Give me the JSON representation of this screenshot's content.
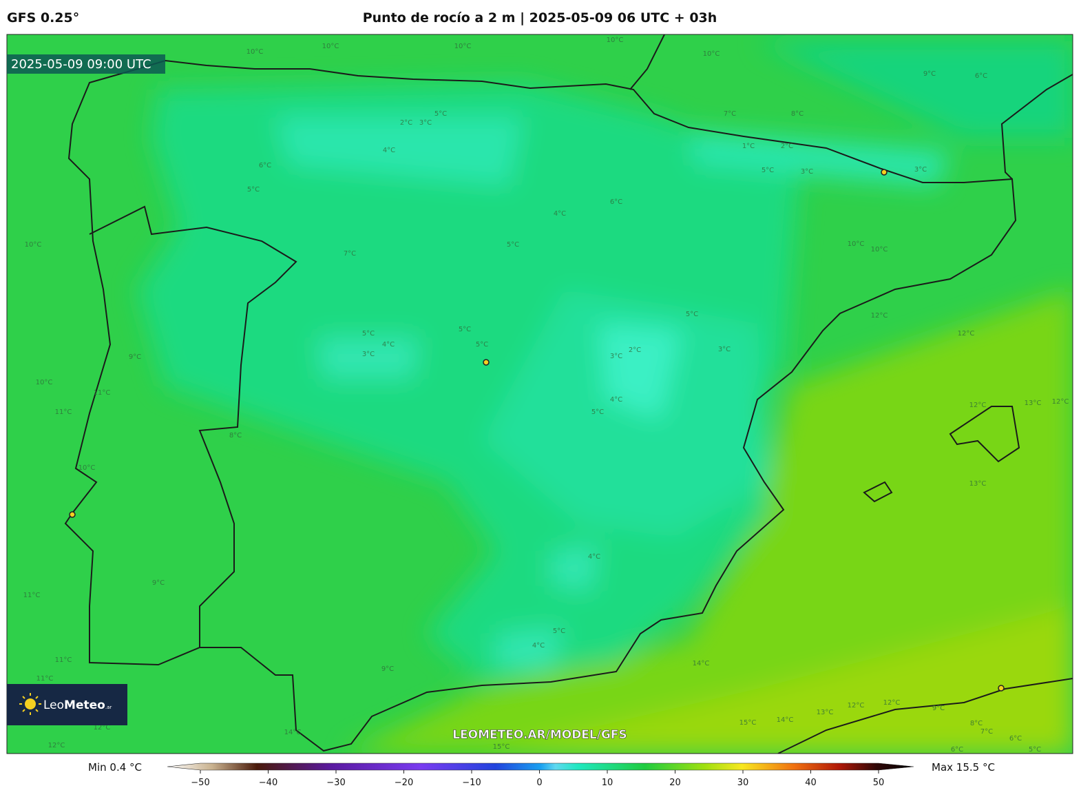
{
  "header": {
    "model": "GFS 0.25°",
    "title": "Punto de rocío a 2 m | 2025-05-09 06 UTC + 03h"
  },
  "map": {
    "valid_time": "2025-05-09 09:00 UTC",
    "watermark": "LEOMETEO.AR/MODEL/GFS",
    "logo": {
      "part1": "Leo",
      "part2": "Meteo",
      "part3": ".ar"
    },
    "contour_labels": [
      "10°C",
      "10°C",
      "10°C",
      "10°C",
      "10°C",
      "2°C",
      "3°C",
      "4°C",
      "5°C",
      "6°C",
      "5°C",
      "7°C",
      "8°C",
      "1°C",
      "2°C",
      "3°C",
      "5°C",
      "3°C",
      "6°C",
      "4°C",
      "5°C",
      "7°C",
      "10°C",
      "10°C",
      "10°C",
      "5°C",
      "4°C",
      "3°C",
      "5°C",
      "5°C",
      "5°C",
      "2°C",
      "3°C",
      "3°C",
      "4°C",
      "5°C",
      "12°C",
      "12°C",
      "12°C",
      "13°C",
      "13°C",
      "9°C",
      "10°C",
      "11°C",
      "11°C",
      "8°C",
      "10°C",
      "9°C",
      "4°C",
      "11°C",
      "5°C",
      "4°C",
      "9°C",
      "11°C",
      "11°C",
      "12°C",
      "12°C",
      "14°C",
      "15°C",
      "14°C",
      "15°C",
      "14°C",
      "13°C",
      "12°C",
      "12°C",
      "9°C",
      "8°C",
      "7°C",
      "6°C",
      "6°C",
      "5°C",
      "9°C",
      "6°C",
      "12°C"
    ]
  },
  "colorbar": {
    "min_label": "Min 0.4 °C",
    "max_label": "Max 15.5 °C",
    "ticks": [
      {
        "value": -50,
        "label": "−50"
      },
      {
        "value": -40,
        "label": "−40"
      },
      {
        "value": -30,
        "label": "−30"
      },
      {
        "value": -20,
        "label": "−20"
      },
      {
        "value": -10,
        "label": "−10"
      },
      0,
      10,
      20,
      30,
      40,
      50
    ]
  }
}
